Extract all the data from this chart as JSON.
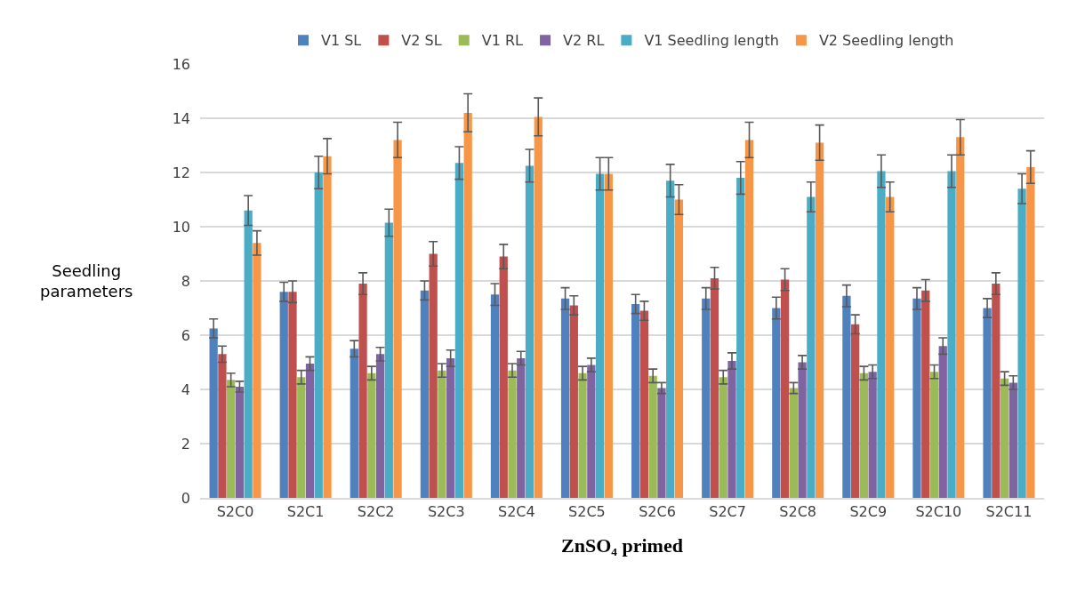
{
  "chart_data": {
    "type": "bar",
    "xlabel": "ZnSO₄ primed",
    "ylabel": "Seedling parameters",
    "categories": [
      "S2C0",
      "S2C1",
      "S2C2",
      "S2C3",
      "S2C4",
      "S2C5",
      "S2C6",
      "S2C7",
      "S2C8",
      "S2C9",
      "S2C10",
      "S2C11"
    ],
    "series": [
      {
        "name": "V1 SL",
        "color": "#4f81bd",
        "values": [
          6.25,
          7.6,
          5.5,
          7.65,
          7.5,
          7.35,
          7.15,
          7.35,
          7.0,
          7.45,
          7.35,
          7.0
        ],
        "errors": [
          0.35,
          0.35,
          0.3,
          0.35,
          0.4,
          0.4,
          0.35,
          0.4,
          0.4,
          0.4,
          0.4,
          0.35
        ]
      },
      {
        "name": "V2 SL",
        "color": "#c0504d",
        "values": [
          5.3,
          7.6,
          7.9,
          9.0,
          8.9,
          7.1,
          6.9,
          8.1,
          8.05,
          6.4,
          7.65,
          7.9
        ],
        "errors": [
          0.3,
          0.4,
          0.4,
          0.45,
          0.45,
          0.35,
          0.35,
          0.4,
          0.4,
          0.35,
          0.4,
          0.4
        ]
      },
      {
        "name": "V1 RL",
        "color": "#9bbb59",
        "values": [
          4.35,
          4.45,
          4.6,
          4.7,
          4.7,
          4.6,
          4.5,
          4.45,
          4.05,
          4.6,
          4.65,
          4.4
        ],
        "errors": [
          0.25,
          0.25,
          0.25,
          0.25,
          0.25,
          0.25,
          0.25,
          0.25,
          0.2,
          0.25,
          0.25,
          0.25
        ]
      },
      {
        "name": "V2 RL",
        "color": "#8064a2",
        "values": [
          4.1,
          4.95,
          5.3,
          5.15,
          5.15,
          4.9,
          4.05,
          5.05,
          5.0,
          4.65,
          5.6,
          4.25
        ],
        "errors": [
          0.2,
          0.25,
          0.25,
          0.3,
          0.25,
          0.25,
          0.2,
          0.3,
          0.25,
          0.25,
          0.3,
          0.25
        ]
      },
      {
        "name": "V1 Seedling length",
        "color": "#4bacc6",
        "values": [
          10.6,
          12.0,
          10.15,
          12.35,
          12.25,
          11.95,
          11.7,
          11.8,
          11.1,
          12.05,
          12.05,
          11.4
        ],
        "errors": [
          0.55,
          0.6,
          0.5,
          0.6,
          0.6,
          0.6,
          0.6,
          0.6,
          0.55,
          0.6,
          0.6,
          0.55
        ]
      },
      {
        "name": "V2 Seedling length",
        "color": "#f79646",
        "values": [
          9.4,
          12.6,
          13.2,
          14.2,
          14.05,
          11.95,
          11.0,
          13.2,
          13.1,
          11.1,
          13.3,
          12.2
        ],
        "errors": [
          0.45,
          0.65,
          0.65,
          0.7,
          0.7,
          0.6,
          0.55,
          0.65,
          0.65,
          0.55,
          0.65,
          0.6
        ]
      }
    ],
    "ylim": [
      0,
      16
    ],
    "yticks": [
      0,
      2,
      4,
      6,
      8,
      10,
      12,
      14,
      16
    ],
    "grid": "y",
    "legend": "top"
  }
}
